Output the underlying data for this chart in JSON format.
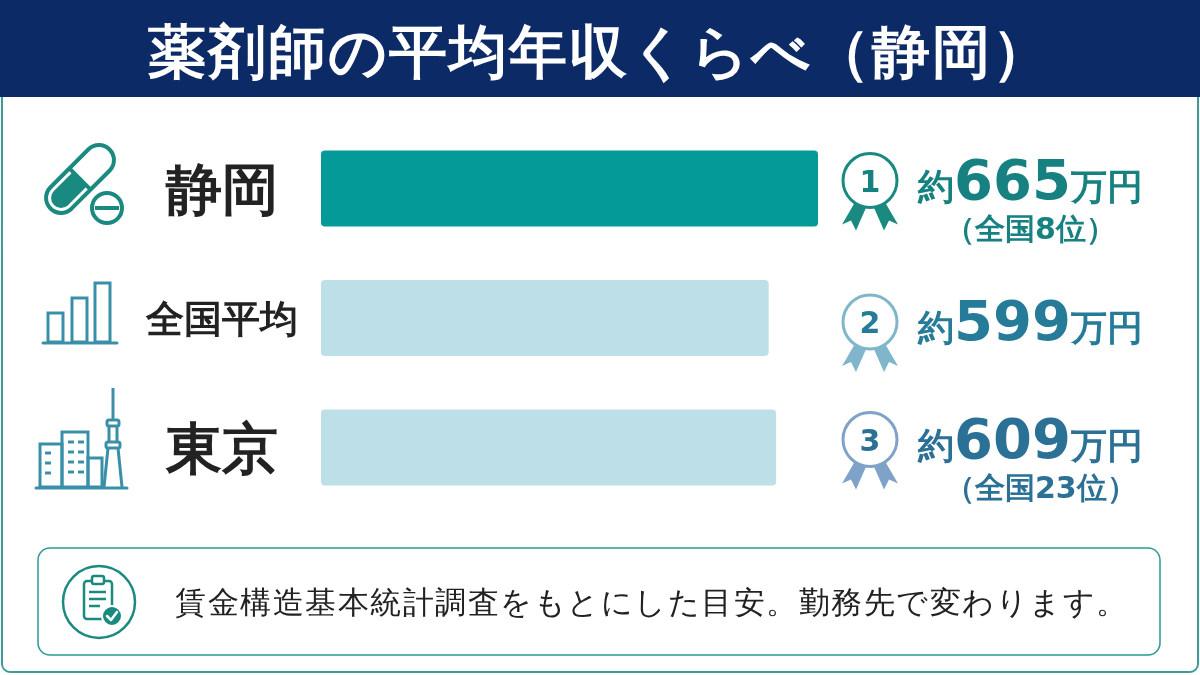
{
  "chart_data": {
    "type": "bar",
    "orientation": "horizontal",
    "title": "薬剤師の平均年収くらべ（静岡）",
    "categories": [
      "静岡",
      "全国平均",
      "東京"
    ],
    "values": [
      665,
      599,
      609
    ],
    "colors": [
      "#039a98",
      "#bde0e8",
      "#bde0e8"
    ],
    "value_labels": [
      "約665万円",
      "約599万円",
      "約609万円"
    ],
    "annotations": [
      "1",
      "（全国8位）",
      "2",
      "3",
      "（全国23位）",
      "賃金構造基本統計調査をもとにした目安。勤務先で変わります。"
    ]
  }
}
